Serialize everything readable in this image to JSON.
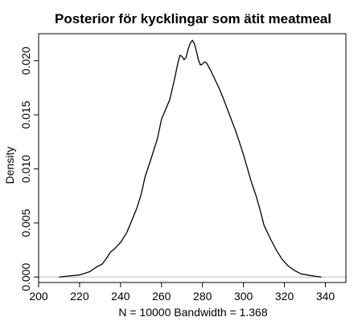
{
  "chart_data": {
    "type": "line",
    "title": "Posterior för kycklingar som ätit meatmeal",
    "xlabel": "N = 10000   Bandwidth = 1.368",
    "ylabel": "Density",
    "xlim": [
      200,
      350
    ],
    "ylim": [
      -0.0005,
      0.0225
    ],
    "x_ticks": [
      200,
      220,
      240,
      260,
      280,
      300,
      320,
      340
    ],
    "x_tick_labels": [
      "200",
      "220",
      "240",
      "260",
      "280",
      "300",
      "320",
      "340"
    ],
    "y_ticks": [
      0.0,
      0.005,
      0.01,
      0.015,
      0.02
    ],
    "y_tick_labels": [
      "0.000",
      "0.005",
      "0.010",
      "0.015",
      "0.020"
    ],
    "baseline": 0,
    "grid": false,
    "colors": {
      "line": "#000000",
      "baseline": "#bebebe",
      "frame": "#000000"
    },
    "series": [
      {
        "x": [
          210,
          215,
          220,
          225,
          228,
          231,
          233,
          235,
          237,
          240,
          243,
          245,
          248,
          250,
          252,
          255,
          258,
          260,
          262,
          264,
          266,
          268,
          269,
          270,
          271,
          272,
          273,
          274,
          275,
          276,
          277,
          278,
          279,
          280,
          281,
          282,
          284,
          286,
          288,
          290,
          292,
          294,
          296,
          298,
          300,
          302,
          304,
          306,
          308,
          310,
          313,
          316,
          319,
          322,
          325,
          328,
          331,
          334,
          338
        ],
        "y": [
          0.0,
          0.0001,
          0.0002,
          0.0005,
          0.0009,
          0.0012,
          0.0017,
          0.0023,
          0.0026,
          0.0032,
          0.0041,
          0.005,
          0.0064,
          0.0076,
          0.0093,
          0.011,
          0.0128,
          0.0146,
          0.0155,
          0.0164,
          0.018,
          0.0198,
          0.0205,
          0.0204,
          0.0201,
          0.0203,
          0.0211,
          0.0216,
          0.0219,
          0.0216,
          0.0209,
          0.0201,
          0.0196,
          0.0197,
          0.0199,
          0.0198,
          0.0191,
          0.0183,
          0.0175,
          0.0166,
          0.0156,
          0.0146,
          0.0136,
          0.0125,
          0.0113,
          0.01,
          0.0087,
          0.0076,
          0.0063,
          0.0048,
          0.0036,
          0.0025,
          0.0016,
          0.001,
          0.0006,
          0.0003,
          0.0002,
          0.0001,
          0.0
        ]
      }
    ]
  }
}
